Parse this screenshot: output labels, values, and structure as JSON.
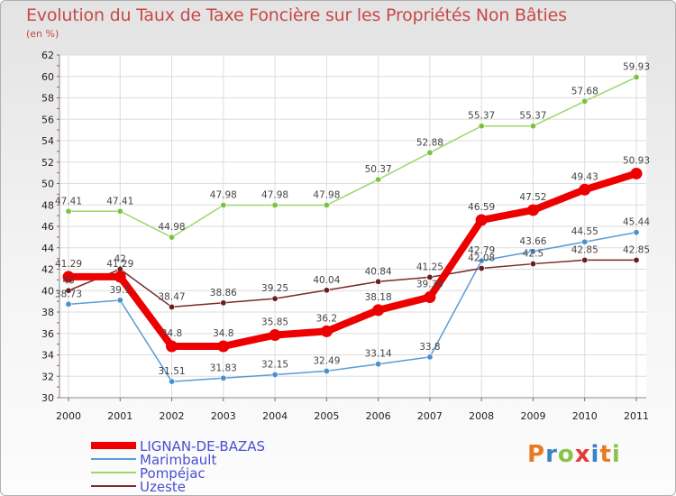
{
  "title": "Evolution du Taux de Taxe Foncière sur les Propriétés Non Bâties",
  "subtitle": "(en %)",
  "brand": {
    "text": "Proxiti",
    "letters": [
      {
        "ch": "P",
        "color": "#e77b22"
      },
      {
        "ch": "r",
        "color": "#3b82c4"
      },
      {
        "ch": "o",
        "color": "#8bc34a"
      },
      {
        "ch": "x",
        "color": "#e23b3b"
      },
      {
        "ch": "i",
        "color": "#3b82c4"
      },
      {
        "ch": "t",
        "color": "#e77b22"
      },
      {
        "ch": "i",
        "color": "#8bc34a"
      }
    ]
  },
  "chart_data": {
    "type": "line",
    "title": "Evolution du Taux de Taxe Foncière sur les Propriétés Non Bâties",
    "ylabel": "(en %)",
    "xlabel": "",
    "ylim": [
      30,
      62
    ],
    "yticks": [
      30,
      32,
      34,
      36,
      38,
      40,
      42,
      44,
      46,
      48,
      50,
      52,
      54,
      56,
      58,
      60,
      62
    ],
    "categories": [
      "2000",
      "2001",
      "2002",
      "2003",
      "2004",
      "2005",
      "2006",
      "2007",
      "2008",
      "2009",
      "2010",
      "2011"
    ],
    "grid": true,
    "legend_position": "bottom-left",
    "series": [
      {
        "name": "Marimbault",
        "color": "#5b9bd5",
        "marker": "#4a90d0",
        "values": [
          38.73,
          39.1,
          31.51,
          31.83,
          32.15,
          32.49,
          33.14,
          33.8,
          42.79,
          43.66,
          44.55,
          45.44
        ],
        "labels": [
          "38.73",
          "39.1",
          "31.51",
          "31.83",
          "32.15",
          "32.49",
          "33.14",
          "33.8",
          "42.79",
          "43.66",
          "44.55",
          "45.44"
        ]
      },
      {
        "name": "Pompéjac",
        "color": "#9ad86a",
        "marker": "#7cc242",
        "values": [
          47.41,
          47.41,
          44.98,
          47.98,
          47.98,
          47.98,
          50.37,
          52.88,
          55.37,
          55.37,
          57.68,
          59.93
        ],
        "labels": [
          "47.41",
          "47.41",
          "44.98",
          "47.98",
          "47.98",
          "47.98",
          "50.37",
          "52.88",
          "55.37",
          "55.37",
          "57.68",
          "59.93"
        ]
      },
      {
        "name": "Uzeste",
        "color": "#7a2a2a",
        "marker": "#6a1f1f",
        "values": [
          40,
          42,
          38.47,
          38.86,
          39.25,
          40.04,
          40.84,
          41.25,
          42.08,
          42.5,
          42.85,
          42.85
        ],
        "labels": [
          "40",
          "42",
          "38.47",
          "38.86",
          "39.25",
          "40.04",
          "40.84",
          "41.25",
          "42.08",
          "42.5",
          "42.85",
          "42.85"
        ]
      },
      {
        "name": "LIGNAN-DE-BAZAS",
        "color": "#ee0000",
        "marker": "#ee0000",
        "bold": true,
        "values": [
          41.29,
          41.29,
          34.8,
          34.8,
          35.85,
          36.2,
          38.18,
          39.39,
          46.59,
          47.52,
          49.43,
          50.93
        ],
        "labels": [
          "41.29",
          "41.29",
          "34.8",
          "34.8",
          "35.85",
          "36.2",
          "38.18",
          "39.39",
          "46.59",
          "47.52",
          "49.43",
          "50.93"
        ]
      }
    ],
    "legend_order": [
      "LIGNAN-DE-BAZAS",
      "Marimbault",
      "Pompéjac",
      "Uzeste"
    ]
  }
}
